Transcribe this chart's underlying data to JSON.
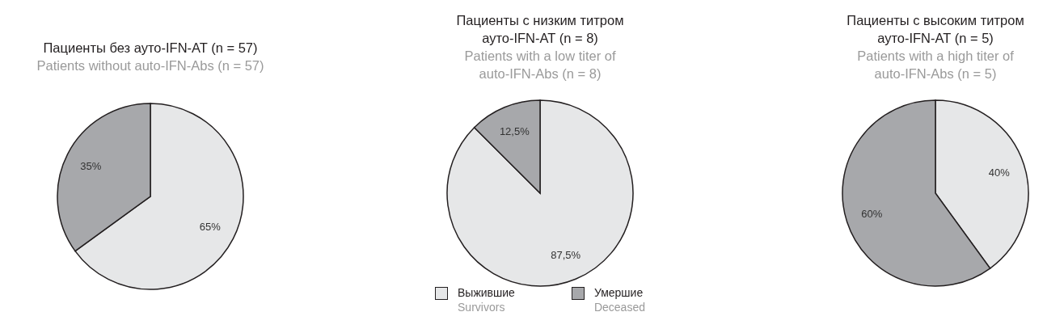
{
  "chart_data": [
    {
      "type": "pie",
      "title": "Пациенты без ауто-IFN-AT (n = 57)",
      "subtitle": "Patients without auto-IFN-Abs (n = 57)",
      "categories": [
        null,
        null
      ],
      "values": [
        65,
        35
      ],
      "colors": [
        "#e6e7e8",
        "#a7a8ab"
      ],
      "value_labels": [
        "65%",
        "35%"
      ],
      "legend": false
    },
    {
      "type": "pie",
      "title": "Пациенты с низким титром ауто-IFN-AT (n = 8)",
      "subtitle": "Patients with a low titer of auto-IFN-Abs (n = 8)",
      "categories": [
        "Выжившие\nSurvivors",
        "Умершие\nDeceased"
      ],
      "values": [
        87.5,
        12.5
      ],
      "colors": [
        "#e6e7e8",
        "#a7a8ab"
      ],
      "value_labels": [
        "87,5%",
        "12,5%"
      ],
      "legend": "bottom"
    },
    {
      "type": "pie",
      "title": "Пациенты с высоким титром ауто-IFN-AT (n = 5)",
      "subtitle": "Patients with a high titer of auto-IFN-Abs (n = 5)",
      "categories": [
        null,
        null
      ],
      "values": [
        40,
        60
      ],
      "colors": [
        "#e6e7e8",
        "#a7a8ab"
      ],
      "value_labels": [
        "40%",
        "60%"
      ],
      "legend": false
    }
  ]
}
